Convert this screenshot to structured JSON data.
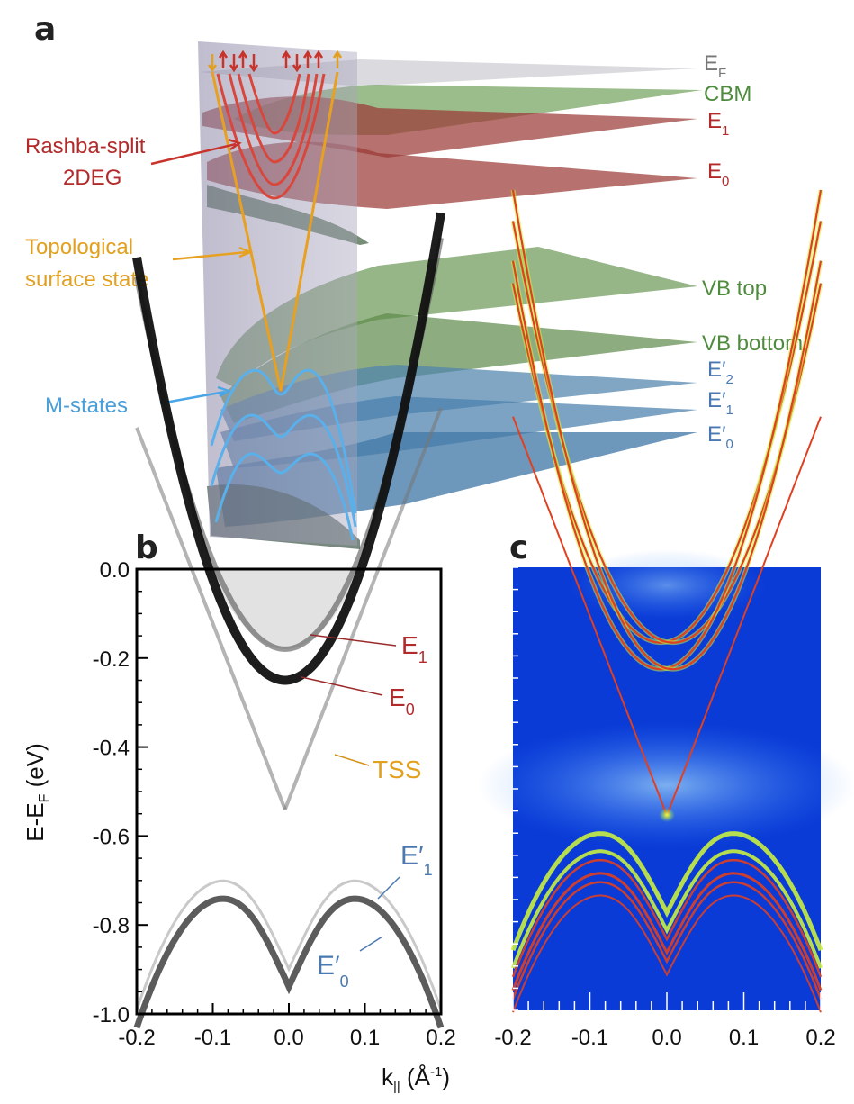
{
  "panels": {
    "a": "a",
    "b": "b",
    "c": "c"
  },
  "panel_a": {
    "levels": [
      {
        "label": "E",
        "sub": "F",
        "color": "#777777"
      },
      {
        "label": "CBM",
        "sub": "",
        "color": "#4e8b3d"
      },
      {
        "label": "E",
        "sub": "1",
        "color": "#b32a2a"
      },
      {
        "label": "E",
        "sub": "0",
        "color": "#b32a2a"
      },
      {
        "label": "VB top",
        "sub": "",
        "color": "#4e8b3d"
      },
      {
        "label": "VB bottom",
        "sub": "",
        "color": "#4e8b3d"
      },
      {
        "label": "E′",
        "sub": "2",
        "color": "#4a78b0"
      },
      {
        "label": "E′",
        "sub": "1",
        "color": "#4a78b0"
      },
      {
        "label": "E′",
        "sub": "0",
        "color": "#4a78b0"
      }
    ],
    "annotations": {
      "rashba_line1": "Rashba-split",
      "rashba_line2": "2DEG",
      "tss_line1": "Topological",
      "tss_line2": "surface state",
      "mstates": "M-states"
    }
  },
  "panel_b_labels": {
    "e1": "E",
    "e1_sub": "1",
    "e0": "E",
    "e0_sub": "0",
    "tss": "TSS",
    "ep1": "E′",
    "ep1_sub": "1",
    "ep0": "E′",
    "ep0_sub": "0"
  },
  "axes": {
    "ylabel_main": "E-E",
    "ylabel_sub": "F",
    "ylabel_unit": " (eV)",
    "xlabel_main": "k",
    "xlabel_sub": "||",
    "xlabel_unit": " (Å",
    "xlabel_exp": "-1",
    "xlabel_close": ")"
  },
  "chart_data": [
    {
      "type": "heatmap",
      "title": "b",
      "xlabel": "k|| (Å-1)",
      "ylabel": "E-EF (eV)",
      "xlim": [
        -0.2,
        0.2
      ],
      "ylim": [
        -1.0,
        0.0
      ],
      "x_ticks": [
        "-0.2",
        "-0.1",
        "0.0",
        "0.1",
        "0.2"
      ],
      "y_ticks": [
        "0.0",
        "-0.2",
        "-0.4",
        "-0.6",
        "-0.8",
        "-1.0"
      ],
      "bands": [
        {
          "name": "E1",
          "type": "parabola",
          "min_energy": -0.18,
          "k0": -0.005,
          "curvature": 22
        },
        {
          "name": "E0",
          "type": "parabola",
          "min_energy": -0.25,
          "k0": -0.005,
          "curvature": 25
        },
        {
          "name": "TSS",
          "type": "dirac",
          "dirac_point": -0.54,
          "slope": 4.4
        }
      ],
      "annotations": [
        "E1",
        "E0",
        "TSS",
        "E′1",
        "E′0"
      ]
    },
    {
      "type": "heatmap",
      "title": "c",
      "xlabel": "k|| (Å-1)",
      "xlim": [
        -0.2,
        0.2
      ],
      "ylim": [
        -1.0,
        0.0
      ],
      "x_ticks": [
        "-0.2",
        "-0.1",
        "0.0",
        "0.1",
        "0.2"
      ],
      "colors": {
        "background": "#0a3bd6",
        "band": "#e04020",
        "highlight": "#c8f040"
      },
      "dirac_point": -0.56
    }
  ]
}
